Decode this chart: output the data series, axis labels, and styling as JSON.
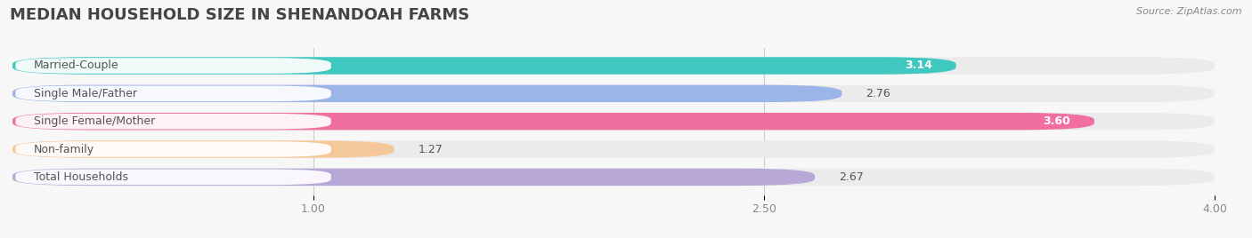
{
  "title": "MEDIAN HOUSEHOLD SIZE IN SHENANDOAH FARMS",
  "source": "Source: ZipAtlas.com",
  "categories": [
    "Married-Couple",
    "Single Male/Father",
    "Single Female/Mother",
    "Non-family",
    "Total Households"
  ],
  "values": [
    3.14,
    2.76,
    3.6,
    1.27,
    2.67
  ],
  "bar_colors": [
    "#3ec8c0",
    "#9bb5e8",
    "#f06fa0",
    "#f5c89a",
    "#b8a8d8"
  ],
  "bg_colors": [
    "#ebebeb",
    "#ebebeb",
    "#ebebeb",
    "#ebebeb",
    "#ebebeb"
  ],
  "value_inside": [
    true,
    false,
    true,
    false,
    false
  ],
  "value_colors_inside": [
    "white",
    "#555555",
    "white",
    "#555555",
    "#555555"
  ],
  "xlim": [
    0,
    4.0
  ],
  "xticks": [
    1.0,
    2.5,
    4.0
  ],
  "bar_height": 0.62,
  "bar_gap": 1.0,
  "background_color": "#f7f7f7",
  "title_fontsize": 13,
  "label_fontsize": 9,
  "value_fontsize": 9
}
